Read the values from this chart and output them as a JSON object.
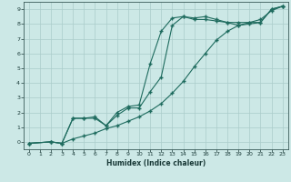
{
  "title": "",
  "xlabel": "Humidex (Indice chaleur)",
  "bg_color": "#cce8e6",
  "grid_color": "#aaccca",
  "line_color": "#1e6b5e",
  "xlim": [
    -0.5,
    23.5
  ],
  "ylim": [
    -0.5,
    9.5
  ],
  "xticks": [
    0,
    1,
    2,
    3,
    4,
    5,
    6,
    7,
    8,
    9,
    10,
    11,
    12,
    13,
    14,
    15,
    16,
    17,
    18,
    19,
    20,
    21,
    22,
    23
  ],
  "yticks": [
    0,
    1,
    2,
    3,
    4,
    5,
    6,
    7,
    8,
    9
  ],
  "curve1_x": [
    0,
    2,
    3,
    4,
    5,
    6,
    7,
    8,
    9,
    10,
    11,
    12,
    13,
    14,
    15,
    16,
    17,
    18,
    19,
    20,
    21,
    22,
    23
  ],
  "curve1_y": [
    -0.1,
    0.0,
    -0.1,
    1.6,
    1.6,
    1.7,
    1.1,
    2.0,
    2.4,
    2.5,
    5.3,
    7.5,
    8.4,
    8.5,
    8.3,
    8.3,
    8.2,
    8.1,
    8.1,
    8.1,
    8.1,
    9.0,
    9.2
  ],
  "curve2_x": [
    0,
    2,
    3,
    4,
    5,
    6,
    7,
    8,
    9,
    10,
    11,
    12,
    13,
    14,
    15,
    16,
    17,
    18,
    19,
    20,
    21,
    22,
    23
  ],
  "curve2_y": [
    -0.1,
    0.0,
    -0.1,
    1.6,
    1.6,
    1.6,
    1.1,
    1.8,
    2.3,
    2.3,
    3.4,
    4.4,
    7.9,
    8.5,
    8.4,
    8.5,
    8.3,
    8.1,
    7.9,
    8.0,
    8.1,
    9.0,
    9.2
  ],
  "curve3_x": [
    0,
    2,
    3,
    4,
    5,
    6,
    7,
    8,
    9,
    10,
    11,
    12,
    13,
    14,
    15,
    16,
    17,
    18,
    19,
    20,
    21,
    22,
    23
  ],
  "curve3_y": [
    -0.1,
    0.0,
    -0.1,
    0.2,
    0.4,
    0.6,
    0.9,
    1.1,
    1.4,
    1.7,
    2.1,
    2.6,
    3.3,
    4.1,
    5.1,
    6.0,
    6.9,
    7.5,
    7.9,
    8.1,
    8.3,
    8.9,
    9.2
  ]
}
